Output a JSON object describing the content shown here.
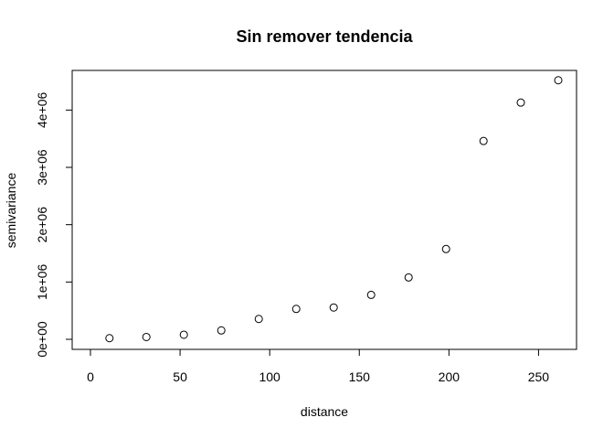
{
  "chart_data": {
    "type": "scatter",
    "title": "Sin remover tendencia",
    "xlabel": "distance",
    "ylabel": "semivariance",
    "xlim": [
      0,
      261
    ],
    "ylim": [
      0,
      4500000
    ],
    "x_ticks": [
      0,
      50,
      100,
      150,
      200,
      250
    ],
    "x_tick_labels": [
      "0",
      "50",
      "100",
      "150",
      "200",
      "250"
    ],
    "y_ticks": [
      0,
      1000000,
      2000000,
      3000000,
      4000000
    ],
    "y_tick_labels": [
      "0e+00",
      "1e+06",
      "2e+06",
      "3e+06",
      "4e+06"
    ],
    "marker": "open-circle",
    "grid": false,
    "legend": "none",
    "points": [
      {
        "x": 10.6,
        "y": 20000
      },
      {
        "x": 31.2,
        "y": 40000
      },
      {
        "x": 52.1,
        "y": 80000
      },
      {
        "x": 73.0,
        "y": 155000
      },
      {
        "x": 93.9,
        "y": 355000
      },
      {
        "x": 114.8,
        "y": 530000
      },
      {
        "x": 135.7,
        "y": 555000
      },
      {
        "x": 156.6,
        "y": 775000
      },
      {
        "x": 177.5,
        "y": 1080000
      },
      {
        "x": 198.4,
        "y": 1575000
      },
      {
        "x": 219.3,
        "y": 3460000
      },
      {
        "x": 240.1,
        "y": 4130000
      },
      {
        "x": 261.0,
        "y": 4520000
      }
    ]
  }
}
